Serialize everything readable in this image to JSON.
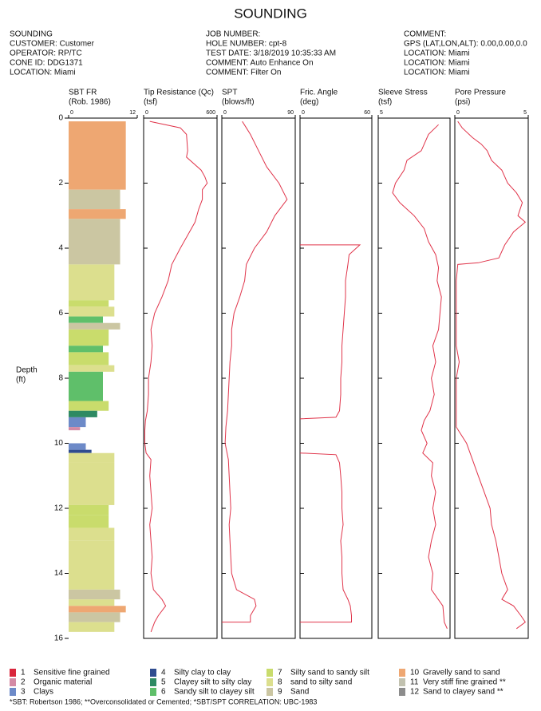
{
  "header": {
    "title": "SOUNDING",
    "left": [
      "SOUNDING",
      "CUSTOMER: Customer",
      "OPERATOR: RP/TC",
      "CONE ID: DDG1371",
      "LOCATION: Miami"
    ],
    "mid": [
      "JOB NUMBER:",
      "HOLE NUMBER: cpt-8",
      "TEST DATE: 3/18/2019 10:35:33 AM",
      "COMMENT: Auto Enhance On",
      "COMMENT: Filter On"
    ],
    "right": [
      "COMMENT:",
      "GPS (LAT,LON,ALT): 0.00,0.00,0.0",
      "LOCATION: Miami",
      "LOCATION: Miami",
      "LOCATION: Miami"
    ]
  },
  "chart_data": [
    {
      "type": "bar",
      "title": [
        "SBT FR",
        "(Rob. 1986)"
      ],
      "ylabel": [
        "Depth",
        "(ft)"
      ],
      "ylim": [
        0,
        16
      ],
      "yticks": [
        0,
        2,
        4,
        6,
        8,
        10,
        12,
        14,
        16
      ],
      "xlim": [
        0,
        12
      ],
      "xticks": [
        0,
        12
      ],
      "tops": [
        0.1,
        2.2,
        2.8,
        3.1,
        4.5,
        5.6,
        5.8,
        6.1,
        6.3,
        6.5,
        7.0,
        7.2,
        7.6,
        7.8,
        8.0,
        8.7,
        9.0,
        9.2,
        9.5,
        10.0,
        10.2,
        10.3,
        10.6,
        11.9,
        12.2,
        12.6,
        13.0,
        14.5,
        14.8,
        15.0,
        15.2,
        15.5
      ],
      "bottoms": [
        2.2,
        2.8,
        3.1,
        4.5,
        5.6,
        5.8,
        6.1,
        6.3,
        6.5,
        7.0,
        7.2,
        7.6,
        7.8,
        8.0,
        8.7,
        9.0,
        9.2,
        9.5,
        9.6,
        10.2,
        10.3,
        10.6,
        11.9,
        12.2,
        12.6,
        13.0,
        14.5,
        14.8,
        15.0,
        15.2,
        15.5,
        15.8
      ],
      "values": [
        10,
        9,
        10,
        9,
        8,
        7,
        8,
        6,
        9,
        7,
        6,
        7,
        8,
        6,
        6,
        7,
        5,
        3,
        2,
        3,
        4,
        8,
        8,
        7,
        7,
        8,
        8,
        9,
        8,
        10,
        9,
        8
      ]
    },
    {
      "type": "line",
      "title": [
        "Tip Resistance (Qc)",
        "(tsf)"
      ],
      "xlim": [
        0,
        600
      ],
      "xticks": [
        0,
        600
      ],
      "color": "#e0344a",
      "depth": [
        0.1,
        0.3,
        0.5,
        1.0,
        1.2,
        1.6,
        1.8,
        2.0,
        2.2,
        2.5,
        2.8,
        3.2,
        3.6,
        4.0,
        4.5,
        5.0,
        5.5,
        6.0,
        6.5,
        7.0,
        7.5,
        8.0,
        8.5,
        9.0,
        9.3,
        9.6,
        10.0,
        10.3,
        10.5,
        11.0,
        11.5,
        12.0,
        12.5,
        13.0,
        13.5,
        14.0,
        14.5,
        14.8,
        15.0,
        15.3,
        15.5,
        15.8
      ],
      "values": [
        50,
        300,
        350,
        360,
        350,
        470,
        500,
        520,
        480,
        480,
        450,
        420,
        360,
        300,
        230,
        200,
        150,
        90,
        60,
        70,
        60,
        40,
        40,
        30,
        15,
        10,
        10,
        20,
        60,
        50,
        60,
        70,
        50,
        60,
        70,
        60,
        80,
        150,
        180,
        120,
        90,
        60
      ]
    },
    {
      "type": "line",
      "title": [
        "SPT",
        "(blows/ft)"
      ],
      "xlim": [
        0,
        90
      ],
      "xticks": [
        0,
        90
      ],
      "color": "#e0344a",
      "depth": [
        0.1,
        0.3,
        0.5,
        1.0,
        1.5,
        2.0,
        2.5,
        3.0,
        3.5,
        4.0,
        4.5,
        5.0,
        5.5,
        6.0,
        6.5,
        7.0,
        7.5,
        8.0,
        8.5,
        9.0,
        9.5,
        10.0,
        10.5,
        11.0,
        11.5,
        12.0,
        12.5,
        13.0,
        13.5,
        14.0,
        14.5,
        14.8,
        15.0,
        15.3,
        15.5,
        15.5
      ],
      "values": [
        25,
        30,
        35,
        45,
        55,
        70,
        80,
        65,
        55,
        40,
        30,
        28,
        22,
        15,
        12,
        12,
        10,
        9,
        8,
        7,
        5,
        4,
        8,
        9,
        10,
        11,
        9,
        10,
        11,
        12,
        18,
        40,
        42,
        35,
        35,
        0
      ]
    },
    {
      "type": "line",
      "title": [
        "Fric. Angle",
        "(deg)"
      ],
      "xlim": [
        0,
        60
      ],
      "xticks": [
        0,
        60
      ],
      "color": "#e0344a",
      "depth": [
        3.9,
        3.9,
        4.2,
        4.5,
        5,
        5.5,
        6,
        6.5,
        7,
        7.5,
        8,
        8.5,
        9,
        9.2,
        9.25,
        9.8,
        10.3,
        10.35,
        10.6,
        11,
        11.5,
        12,
        12.5,
        13,
        13.5,
        14,
        14.5,
        14.8,
        15,
        15.3,
        15.5,
        15.5
      ],
      "values": [
        0,
        50,
        41,
        40,
        38,
        38,
        37,
        36,
        35,
        35,
        34,
        34,
        33,
        30,
        0,
        null,
        0,
        30,
        33,
        34,
        35,
        35,
        36,
        34,
        35,
        35,
        36,
        40,
        42,
        43,
        43,
        0
      ]
    },
    {
      "type": "line",
      "title": [
        "Sleeve Stress",
        "(tsf)"
      ],
      "xlim": [
        5,
        0
      ],
      "xticks": [
        5
      ],
      "color": "#e0344a",
      "depth": [
        0.2,
        0.5,
        1.0,
        1.3,
        1.6,
        2.0,
        2.3,
        2.6,
        3.0,
        3.4,
        3.8,
        4.2,
        4.6,
        5.0,
        5.5,
        6.0,
        6.5,
        7.0,
        7.5,
        8.0,
        8.5,
        9.0,
        9.3,
        9.6,
        10.0,
        10.3,
        10.6,
        11.0,
        11.5,
        12.0,
        12.5,
        13.0,
        13.5,
        14.0,
        14.5,
        15.0,
        15.5,
        15.7
      ],
      "values": [
        0.8,
        1.5,
        2.0,
        3.0,
        3.2,
        3.8,
        4.0,
        3.5,
        2.5,
        1.8,
        1.5,
        1.0,
        0.8,
        0.9,
        0.6,
        0.7,
        0.8,
        1.2,
        1.0,
        1.3,
        1.1,
        1.4,
        1.8,
        2.0,
        1.6,
        1.9,
        1.2,
        1.3,
        1.0,
        1.2,
        1.0,
        1.3,
        1.5,
        1.2,
        1.3,
        0.5,
        0.4,
        0.2
      ]
    },
    {
      "type": "line",
      "title": [
        "Pore Pressure",
        "(psi)"
      ],
      "xlim": [
        0,
        5
      ],
      "xticks": [
        0,
        5
      ],
      "color": "#e0344a",
      "depth": [
        0.1,
        0.3,
        0.6,
        0.8,
        1.0,
        1.3,
        1.6,
        2.0,
        2.3,
        2.6,
        3.0,
        3.2,
        3.5,
        3.9,
        4.3,
        4.45,
        4.5,
        5,
        6,
        7,
        7.5,
        8,
        9,
        9.5,
        10.0,
        10.5,
        11,
        11.5,
        12.0,
        12.5,
        13,
        13.5,
        14.0,
        14.5,
        14.8,
        15.0,
        15.3,
        15.5,
        15.7
      ],
      "values": [
        0.2,
        0.5,
        1.2,
        1.8,
        2.2,
        2.5,
        3.2,
        3.6,
        4.2,
        4.6,
        4.3,
        4.8,
        4.0,
        3.4,
        3.0,
        1.6,
        0.2,
        0.1,
        0.1,
        0.1,
        0.3,
        0.1,
        0.1,
        0.1,
        0.8,
        1.2,
        1.6,
        2.0,
        2.4,
        2.5,
        2.8,
        3.0,
        3.2,
        3.6,
        3.2,
        4.0,
        4.5,
        4.8,
        4.2
      ]
    }
  ],
  "legend": [
    {
      "zone": 1,
      "label": "Sensitive fine grained",
      "color": "#d9263c"
    },
    {
      "zone": 2,
      "label": "Organic material",
      "color": "#d48aa5"
    },
    {
      "zone": 3,
      "label": "Clays",
      "color": "#6d8ac8"
    },
    {
      "zone": 4,
      "label": "Silty clay to clay",
      "color": "#2f4c8f"
    },
    {
      "zone": 5,
      "label": "Clayey silt to silty clay",
      "color": "#2e8a63"
    },
    {
      "zone": 6,
      "label": "Sandy silt to clayey silt",
      "color": "#5fbf6a"
    },
    {
      "zone": 7,
      "label": "Silty sand to sandy silt",
      "color": "#c9dc6c"
    },
    {
      "zone": 8,
      "label": "sand to silty sand",
      "color": "#dcdf8e"
    },
    {
      "zone": 9,
      "label": "Sand",
      "color": "#cbc6a2"
    },
    {
      "zone": 10,
      "label": "Gravelly sand to sand",
      "color": "#eea772"
    },
    {
      "zone": 11,
      "label": "Very stiff fine grained **",
      "color": "#c2c2b0"
    },
    {
      "zone": 12,
      "label": "Sand to clayey sand **",
      "color": "#8c8c8c"
    }
  ],
  "footnote": "*SBT:  Robertson 1986; **Overconsolidated or Cemented; *SBT/SPT CORRELATION: UBC-1983"
}
